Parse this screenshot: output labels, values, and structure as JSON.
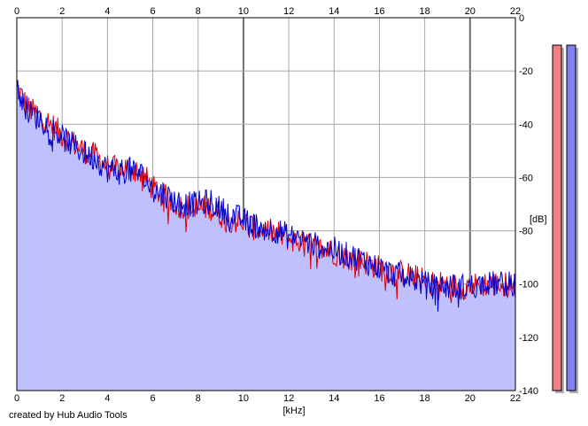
{
  "credit": "created by Hub Audio Tools",
  "chart_data": {
    "type": "area",
    "xlabel": "[kHz]",
    "ylabel": "[dB]",
    "xlim": [
      0,
      22
    ],
    "ylim": [
      -140,
      0
    ],
    "x_ticks": [
      0,
      2,
      4,
      6,
      8,
      10,
      12,
      14,
      16,
      18,
      20,
      22
    ],
    "y_ticks": [
      0,
      -20,
      -40,
      -60,
      -80,
      -100,
      -120,
      -140
    ],
    "grid": true,
    "fill_color": "#c0c0ff",
    "series": [
      {
        "color": "#e00000",
        "x": [
          0,
          0.25,
          0.5,
          1,
          1.5,
          2,
          2.5,
          3,
          3.5,
          4,
          4.5,
          5,
          5.5,
          6,
          6.5,
          7,
          7.5,
          8,
          8.5,
          9,
          9.5,
          10,
          10.5,
          11,
          11.5,
          12,
          12.5,
          13,
          13.5,
          14,
          14.5,
          15,
          15.5,
          16,
          16.5,
          17,
          17.5,
          18,
          18.5,
          19,
          19.5,
          20,
          20.5,
          21,
          21.5,
          22
        ],
        "values": [
          -26,
          -30,
          -34,
          -37,
          -40,
          -44,
          -47,
          -50,
          -52,
          -56,
          -57,
          -56,
          -58,
          -64,
          -67,
          -70,
          -71,
          -72,
          -71,
          -74,
          -76,
          -77,
          -79,
          -80,
          -81,
          -83,
          -84,
          -86,
          -87,
          -88,
          -90,
          -91,
          -92,
          -94,
          -95,
          -96,
          -97,
          -99,
          -100,
          -100,
          -101,
          -101,
          -100,
          -100,
          -100,
          -101
        ]
      },
      {
        "color": "#0000d0",
        "x": [
          0,
          0.25,
          0.5,
          1,
          1.5,
          2,
          2.5,
          3,
          3.5,
          4,
          4.5,
          5,
          5.5,
          6,
          6.5,
          7,
          7.5,
          8,
          8.5,
          9,
          9.5,
          10,
          10.5,
          11,
          11.5,
          12,
          12.5,
          13,
          13.5,
          14,
          14.5,
          15,
          15.5,
          16,
          16.5,
          17,
          17.5,
          18,
          18.5,
          19,
          19.5,
          20,
          20.5,
          21,
          21.5,
          22
        ],
        "values": [
          -27,
          -31,
          -35,
          -38,
          -41,
          -45,
          -48,
          -51,
          -53,
          -57,
          -58,
          -57,
          -59,
          -65,
          -66,
          -69,
          -70,
          -70,
          -69,
          -72,
          -74,
          -76,
          -78,
          -79,
          -80,
          -82,
          -83,
          -85,
          -86,
          -87,
          -89,
          -90,
          -92,
          -94,
          -96,
          -97,
          -98,
          -100,
          -101,
          -101,
          -101,
          -101,
          -100,
          -100,
          -100,
          -100
        ]
      }
    ],
    "level_meters": [
      {
        "color": "#f08080",
        "level": 1.0
      },
      {
        "color": "#8080f0",
        "level": 1.0
      }
    ]
  }
}
